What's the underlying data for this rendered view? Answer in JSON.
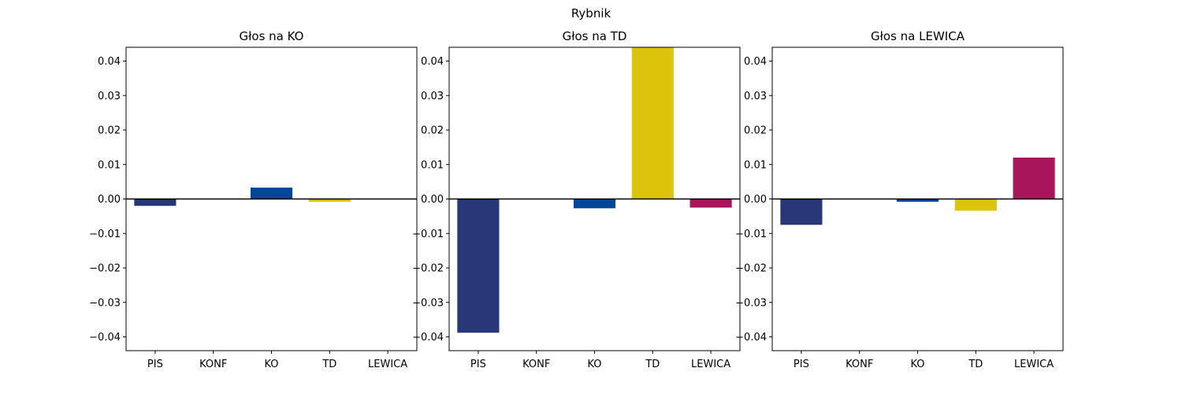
{
  "chart_data": {
    "suptitle": "Rybnik",
    "categories": [
      "PIS",
      "KONF",
      "KO",
      "TD",
      "LEWICA"
    ],
    "colors": {
      "PIS": "#283778",
      "KONF": "#2b3a70",
      "KO": "#004799",
      "TD": "#dcc40c",
      "LEWICA": "#a8155a"
    },
    "ylim": [
      -0.044,
      0.044
    ],
    "yticks": [
      0.04,
      0.03,
      0.02,
      0.01,
      0.0,
      -0.01,
      -0.02,
      -0.03,
      -0.04
    ],
    "ytick_labels": [
      "0.04",
      "0.03",
      "0.02",
      "0.01",
      "0.00",
      "−0.01",
      "−0.02",
      "−0.03",
      "−0.04"
    ],
    "baseline": 0,
    "grid": false,
    "panels": [
      {
        "type": "bar",
        "title": "Głos na KO",
        "values": [
          -0.002,
          0.0,
          0.0033,
          -0.0008,
          0.0
        ]
      },
      {
        "type": "bar",
        "title": "Głos na TD",
        "values": [
          -0.0388,
          0.0,
          -0.0027,
          0.044,
          -0.0025
        ]
      },
      {
        "type": "bar",
        "title": "Głos na LEWICA",
        "values": [
          -0.0075,
          0.0,
          -0.0008,
          -0.0034,
          0.012
        ]
      }
    ]
  }
}
